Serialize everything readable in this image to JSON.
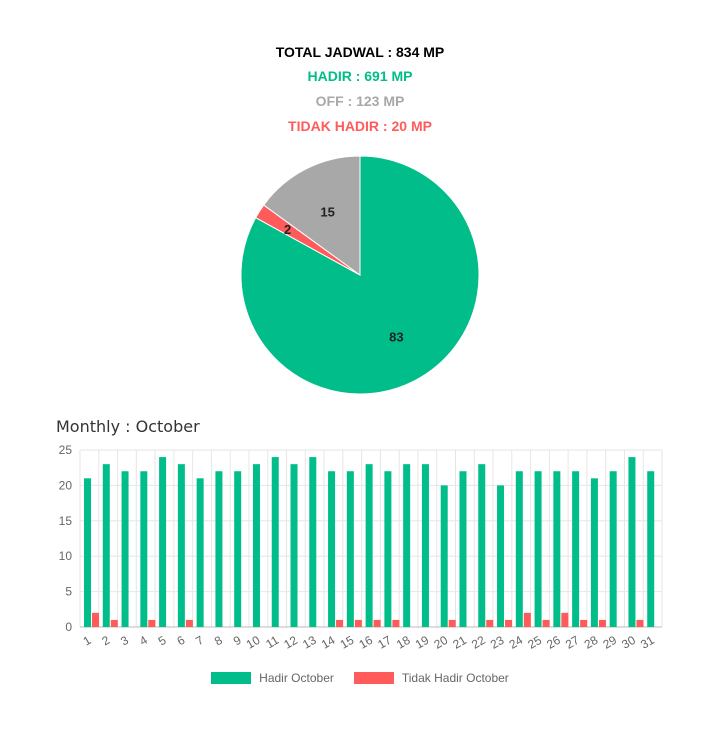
{
  "summary": {
    "total": "TOTAL JADWAL : 834 MP",
    "hadir": "HADIR : 691 MP",
    "off": "OFF : 123 MP",
    "tidak_hadir": "TIDAK HADIR : 20 MP"
  },
  "colors": {
    "hadir": "#00bd89",
    "off": "#a8a8a8",
    "tidak_hadir": "#ff5b5b",
    "grid": "#e6e6e6",
    "axis_text": "#666666"
  },
  "monthly_title": "Monthly : October",
  "legend": {
    "hadir": "Hadir October",
    "tidak_hadir": "Tidak Hadir October"
  },
  "chart_data": [
    {
      "type": "pie",
      "slices": [
        {
          "label": "83",
          "value": 83,
          "color": "#00bd89"
        },
        {
          "label": "2",
          "value": 2,
          "color": "#ff5b5b"
        },
        {
          "label": "15",
          "value": 15,
          "color": "#a8a8a8"
        }
      ]
    },
    {
      "type": "bar",
      "categories": [
        "1",
        "2",
        "3",
        "4",
        "5",
        "6",
        "7",
        "8",
        "9",
        "10",
        "11",
        "12",
        "13",
        "14",
        "15",
        "16",
        "17",
        "18",
        "19",
        "20",
        "21",
        "22",
        "23",
        "24",
        "25",
        "26",
        "27",
        "28",
        "29",
        "30",
        "31"
      ],
      "series": [
        {
          "name": "Hadir October",
          "color": "#00bd89",
          "values": [
            21,
            23,
            22,
            22,
            24,
            23,
            21,
            22,
            22,
            23,
            24,
            23,
            24,
            22,
            22,
            23,
            22,
            23,
            23,
            20,
            22,
            23,
            20,
            22,
            22,
            22,
            22,
            21,
            22,
            24,
            22
          ]
        },
        {
          "name": "Tidak Hadir October",
          "color": "#ff5b5b",
          "values": [
            2,
            1,
            0,
            1,
            0,
            1,
            0,
            0,
            0,
            0,
            0,
            0,
            0,
            1,
            1,
            1,
            1,
            0,
            0,
            1,
            0,
            1,
            1,
            2,
            1,
            2,
            1,
            1,
            0,
            1,
            0
          ]
        }
      ],
      "ylim": [
        0,
        25
      ],
      "yticks": [
        "0",
        "5",
        "10",
        "15",
        "20",
        "25"
      ],
      "grid": true,
      "legend": "bottom"
    }
  ]
}
